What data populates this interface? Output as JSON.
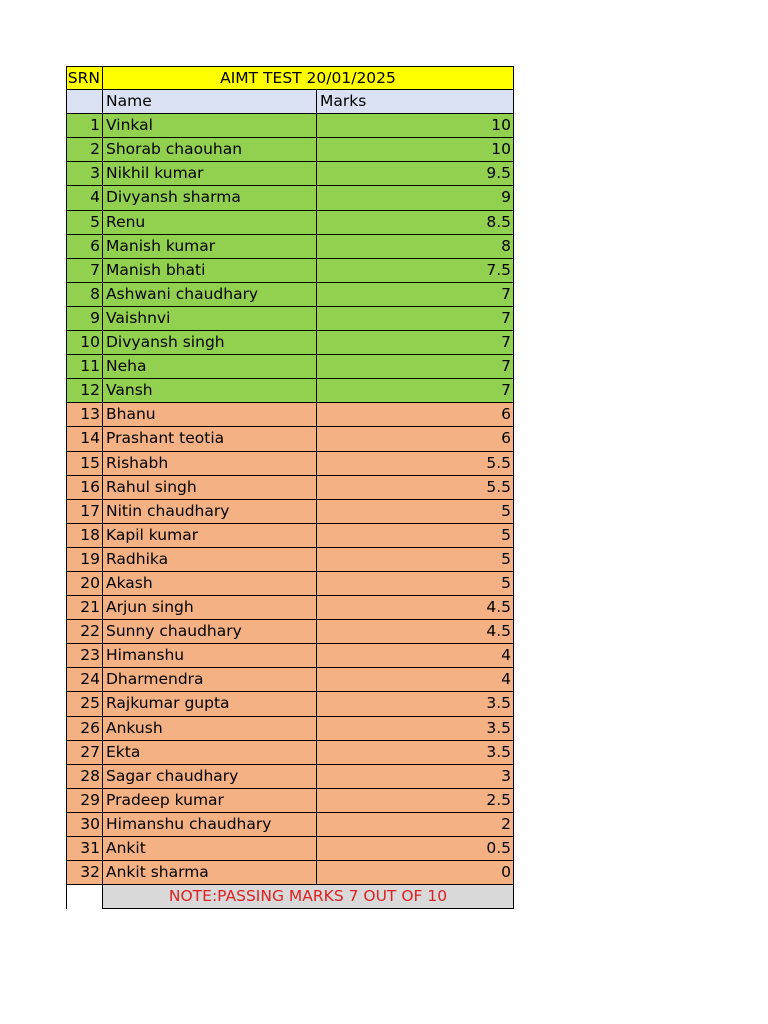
{
  "sheet": {
    "srn_label": "SRN",
    "title": "AIMT TEST 20/01/2025",
    "col_name": "Name",
    "col_marks": "Marks",
    "note": "NOTE:PASSING MARKS 7 OUT OF 10"
  },
  "colors": {
    "title_fill": "#ffff00",
    "header_fill": "#d9e1f2",
    "pass_fill": "#92d050",
    "fail_fill": "#f4b183",
    "note_fill": "#d9d9d9",
    "note_text": "#e02020"
  },
  "rows": [
    {
      "srn": "1",
      "name": "Vinkal",
      "marks": "10",
      "status": "pass"
    },
    {
      "srn": "2",
      "name": "Shorab chaouhan",
      "marks": "10",
      "status": "pass"
    },
    {
      "srn": "3",
      "name": "Nikhil kumar",
      "marks": "9.5",
      "status": "pass"
    },
    {
      "srn": "4",
      "name": "Divyansh sharma",
      "marks": "9",
      "status": "pass"
    },
    {
      "srn": "5",
      "name": "Renu",
      "marks": "8.5",
      "status": "pass"
    },
    {
      "srn": "6",
      "name": "Manish kumar",
      "marks": "8",
      "status": "pass"
    },
    {
      "srn": "7",
      "name": "Manish bhati",
      "marks": "7.5",
      "status": "pass"
    },
    {
      "srn": "8",
      "name": "Ashwani chaudhary",
      "marks": "7",
      "status": "pass"
    },
    {
      "srn": "9",
      "name": "Vaishnvi",
      "marks": "7",
      "status": "pass"
    },
    {
      "srn": "10",
      "name": "Divyansh singh",
      "marks": "7",
      "status": "pass"
    },
    {
      "srn": "11",
      "name": "Neha",
      "marks": "7",
      "status": "pass"
    },
    {
      "srn": "12",
      "name": "Vansh",
      "marks": "7",
      "status": "pass"
    },
    {
      "srn": "13",
      "name": "Bhanu",
      "marks": "6",
      "status": "fail"
    },
    {
      "srn": "14",
      "name": "Prashant teotia",
      "marks": "6",
      "status": "fail"
    },
    {
      "srn": "15",
      "name": "Rishabh",
      "marks": "5.5",
      "status": "fail"
    },
    {
      "srn": "16",
      "name": "Rahul singh",
      "marks": "5.5",
      "status": "fail"
    },
    {
      "srn": "17",
      "name": "Nitin chaudhary",
      "marks": "5",
      "status": "fail"
    },
    {
      "srn": "18",
      "name": "Kapil kumar",
      "marks": "5",
      "status": "fail"
    },
    {
      "srn": "19",
      "name": "Radhika",
      "marks": "5",
      "status": "fail"
    },
    {
      "srn": "20",
      "name": "Akash",
      "marks": "5",
      "status": "fail"
    },
    {
      "srn": "21",
      "name": "Arjun singh",
      "marks": "4.5",
      "status": "fail"
    },
    {
      "srn": "22",
      "name": "Sunny chaudhary",
      "marks": "4.5",
      "status": "fail"
    },
    {
      "srn": "23",
      "name": "Himanshu",
      "marks": "4",
      "status": "fail"
    },
    {
      "srn": "24",
      "name": "Dharmendra",
      "marks": "4",
      "status": "fail"
    },
    {
      "srn": "25",
      "name": "Rajkumar gupta",
      "marks": "3.5",
      "status": "fail"
    },
    {
      "srn": "26",
      "name": "Ankush",
      "marks": "3.5",
      "status": "fail"
    },
    {
      "srn": "27",
      "name": "Ekta",
      "marks": "3.5",
      "status": "fail"
    },
    {
      "srn": "28",
      "name": "Sagar chaudhary",
      "marks": "3",
      "status": "fail"
    },
    {
      "srn": "29",
      "name": "Pradeep kumar",
      "marks": "2.5",
      "status": "fail"
    },
    {
      "srn": "30",
      "name": "Himanshu chaudhary",
      "marks": "2",
      "status": "fail"
    },
    {
      "srn": "31",
      "name": "Ankit",
      "marks": "0.5",
      "status": "fail"
    },
    {
      "srn": "32",
      "name": "Ankit sharma",
      "marks": "0",
      "status": "fail"
    }
  ]
}
